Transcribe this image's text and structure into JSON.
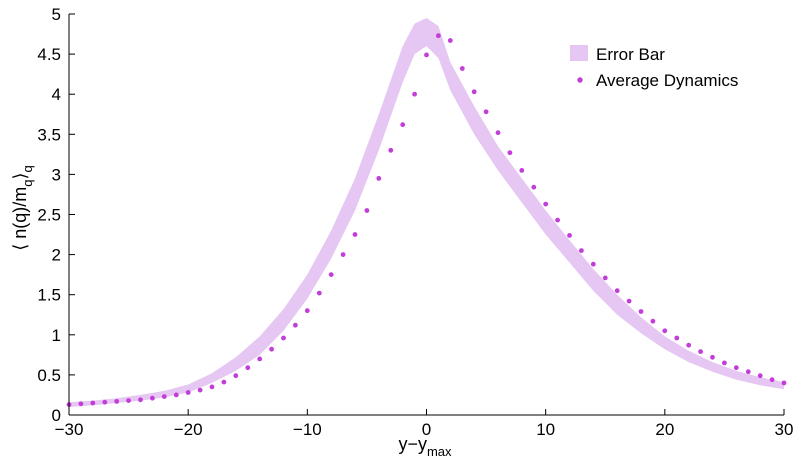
{
  "chart_data": {
    "type": "scatter",
    "xlim": [
      -30,
      30
    ],
    "ylim": [
      0,
      5
    ],
    "xticks": [
      -30,
      -20,
      -10,
      0,
      10,
      20,
      30
    ],
    "xtick_labels": [
      "−30",
      "−20",
      "−10",
      "0",
      "10",
      "20",
      "30"
    ],
    "yticks": [
      0,
      0.5,
      1,
      1.5,
      2,
      2.5,
      3,
      3.5,
      4,
      4.5,
      5
    ],
    "ytick_labels": [
      "0",
      "0.5",
      "1",
      "1.5",
      "2",
      "2.5",
      "3",
      "3.5",
      "4",
      "4.5",
      "5"
    ],
    "xlabel": {
      "main": "y−y",
      "sub": "max"
    },
    "ylabel": {
      "pre": "⟨ n(q)/m",
      "sub1": "q",
      "mid": "⟩",
      "sub2": "q"
    },
    "grid": false,
    "legend_position": "top-right",
    "series": [
      {
        "name": "Error Bar",
        "kind": "band",
        "color": "#e6c6f2",
        "x": [
          -30,
          -28,
          -26,
          -24,
          -22,
          -20,
          -18,
          -16,
          -14,
          -12,
          -10,
          -8,
          -6,
          -4,
          -2,
          -1,
          0,
          1,
          2,
          4,
          6,
          8,
          10,
          12,
          14,
          16,
          18,
          20,
          22,
          24,
          26,
          28,
          30
        ],
        "lower": [
          0.1,
          0.12,
          0.15,
          0.18,
          0.22,
          0.28,
          0.4,
          0.55,
          0.75,
          1.05,
          1.45,
          1.95,
          2.55,
          3.3,
          4.15,
          4.5,
          4.6,
          4.45,
          4.05,
          3.5,
          3.05,
          2.65,
          2.25,
          1.9,
          1.55,
          1.25,
          1.02,
          0.82,
          0.66,
          0.54,
          0.44,
          0.37,
          0.32
        ],
        "upper": [
          0.16,
          0.18,
          0.21,
          0.25,
          0.3,
          0.38,
          0.52,
          0.72,
          0.98,
          1.32,
          1.75,
          2.3,
          2.95,
          3.75,
          4.6,
          4.88,
          4.95,
          4.85,
          4.4,
          3.85,
          3.35,
          2.95,
          2.55,
          2.18,
          1.82,
          1.5,
          1.22,
          0.98,
          0.8,
          0.66,
          0.55,
          0.47,
          0.41
        ]
      },
      {
        "name": "Average Dynamics",
        "kind": "markers",
        "color": "#c13ed8",
        "x": [
          -30,
          -29,
          -28,
          -27,
          -26,
          -25,
          -24,
          -23,
          -22,
          -21,
          -20,
          -19,
          -18,
          -17,
          -16,
          -15,
          -14,
          -13,
          -12,
          -11,
          -10,
          -9,
          -8,
          -7,
          -6,
          -5,
          -4,
          -3,
          -2,
          -1,
          0,
          1,
          2,
          3,
          4,
          5,
          6,
          7,
          8,
          9,
          10,
          11,
          12,
          13,
          14,
          15,
          16,
          17,
          18,
          19,
          20,
          21,
          22,
          23,
          24,
          25,
          26,
          27,
          28,
          29,
          30
        ],
        "y": [
          0.13,
          0.14,
          0.15,
          0.16,
          0.17,
          0.18,
          0.19,
          0.21,
          0.23,
          0.25,
          0.28,
          0.31,
          0.35,
          0.41,
          0.49,
          0.59,
          0.7,
          0.82,
          0.96,
          1.12,
          1.3,
          1.52,
          1.75,
          2.0,
          2.25,
          2.55,
          2.95,
          3.3,
          3.62,
          4.0,
          4.49,
          4.73,
          4.67,
          4.32,
          4.03,
          3.78,
          3.52,
          3.27,
          3.05,
          2.84,
          2.63,
          2.43,
          2.24,
          2.05,
          1.88,
          1.71,
          1.55,
          1.42,
          1.29,
          1.17,
          1.05,
          0.96,
          0.87,
          0.79,
          0.72,
          0.65,
          0.59,
          0.54,
          0.49,
          0.44,
          0.4
        ]
      }
    ]
  }
}
